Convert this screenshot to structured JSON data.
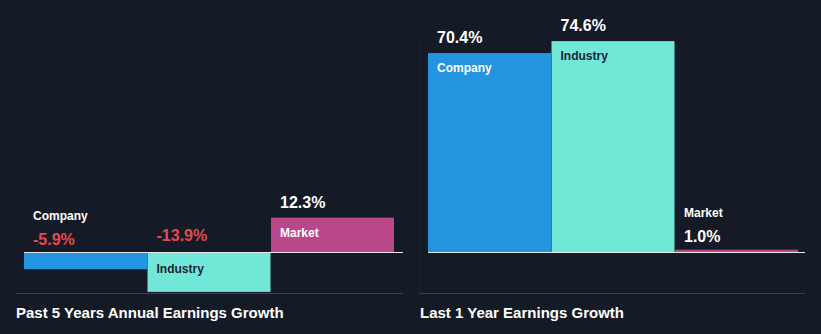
{
  "chart_data": [
    {
      "type": "bar",
      "title": "Past 5 Years Annual Earnings Growth",
      "categories": [
        "Company",
        "Industry",
        "Market"
      ],
      "values": [
        -5.9,
        -13.9,
        12.3
      ],
      "value_labels": [
        "-5.9%",
        "-13.9%",
        "12.3%"
      ],
      "colors": [
        "#2394e0",
        "#71e8d7",
        "#b8488a"
      ],
      "ylim": [
        -15,
        75
      ],
      "data_labels": true,
      "tick_labels": false
    },
    {
      "type": "bar",
      "title": "Last 1 Year Earnings Growth",
      "categories": [
        "Company",
        "Industry",
        "Market"
      ],
      "values": [
        70.4,
        74.6,
        1.0
      ],
      "value_labels": [
        "70.4%",
        "74.6%",
        "1.0%"
      ],
      "colors": [
        "#2394e0",
        "#71e8d7",
        "#b8488a"
      ],
      "ylim": [
        -15,
        75
      ],
      "data_labels": true,
      "tick_labels": false
    }
  ]
}
